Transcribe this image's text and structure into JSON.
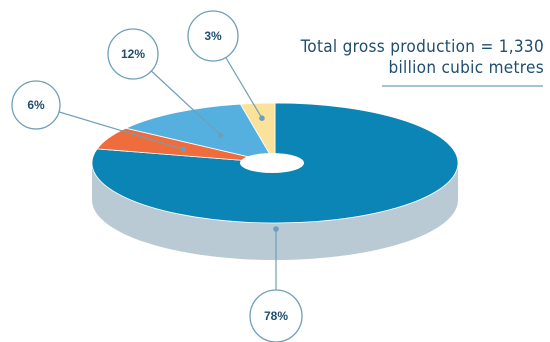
{
  "chart_data": {
    "type": "pie",
    "title_lines": [
      "Total gross production = 1,330",
      "billion cubic metres"
    ],
    "slices": [
      {
        "label": "78%",
        "value": 78,
        "color": "#0a85b5",
        "side_color": "#b9cad5"
      },
      {
        "label": "6%",
        "value": 6,
        "color": "#ef6c3c",
        "side_color": "#c98a72"
      },
      {
        "label": "12%",
        "value": 12,
        "color": "#55b0e0",
        "side_color": "#8fb8cf"
      },
      {
        "label": "3%",
        "value": 3,
        "color": "#fbe29a",
        "side_color": "#d8cb9a"
      }
    ],
    "accent_color": "#1f4e6e",
    "callout_color": "#6f9fb8"
  }
}
